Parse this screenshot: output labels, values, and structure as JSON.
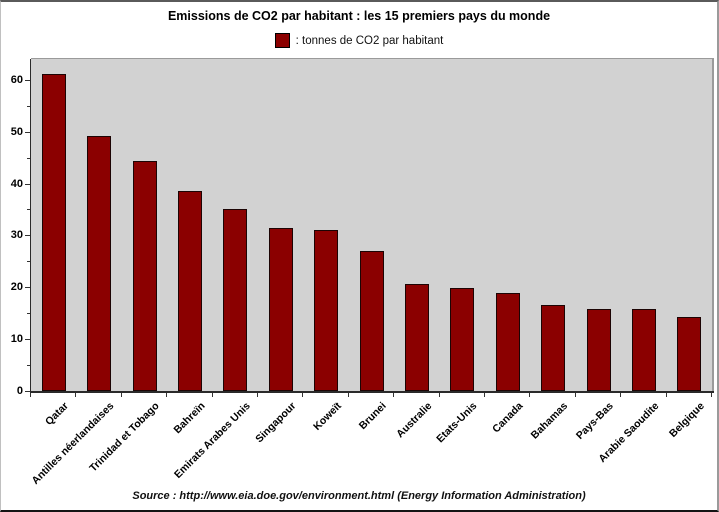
{
  "title": "Emissions de CO2 par habitant : les 15 premiers pays du monde",
  "legend": {
    "swatch_color": "#8b0000",
    "label": ": tonnes de CO2 par habitant"
  },
  "source": "Source : http://www.eia.doe.gov/environment.html (Energy Information Administration)",
  "colors": {
    "bar": "#8b0000",
    "bar_border": "#1c0404",
    "plot_background": "#d2d2d2",
    "axis": "#2a2a2a",
    "text": "#000000"
  },
  "chart_data": {
    "type": "bar",
    "title": "Emissions de CO2 par habitant : les 15 premiers pays du monde",
    "legend_entries": [
      ": tonnes de CO2 par habitant"
    ],
    "legend_position": "top-center",
    "categories": [
      "Qatar",
      "Antilles néerlandaises",
      "Trinidad et Tobago",
      "Bahreïn",
      "Emirats Arabes Unis",
      "Singapour",
      "Koweït",
      "Brunei",
      "Australie",
      "Etats-Unis",
      "Canada",
      "Bahamas",
      "Pays-Bas",
      "Arabie Saoudite",
      "Belgique"
    ],
    "values": [
      61.1,
      49.2,
      44.4,
      38.5,
      35.0,
      31.4,
      31.0,
      26.9,
      20.6,
      19.8,
      18.9,
      16.6,
      15.9,
      15.8,
      14.3
    ],
    "xlabel": "",
    "ylabel": "",
    "ylim": [
      0,
      64
    ],
    "yticks_major": [
      0,
      10,
      20,
      30,
      40,
      50,
      60
    ],
    "yticks_minor": [
      5,
      15,
      25,
      35,
      45,
      55
    ],
    "grid": false,
    "unit": "tonnes de CO2 par habitant"
  }
}
